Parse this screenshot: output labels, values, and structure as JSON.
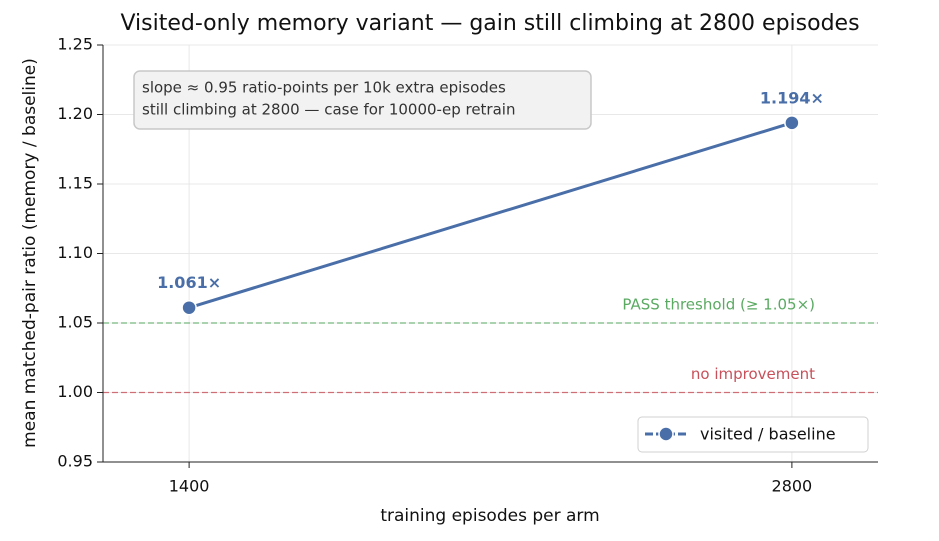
{
  "chart_data": {
    "type": "line",
    "title": "Visited-only memory variant — gain still climbing at 2800 episodes",
    "xlabel": "training episodes per arm",
    "ylabel": "mean matched-pair ratio  (memory / baseline)",
    "x": [
      1400,
      2800
    ],
    "series": [
      {
        "name": "visited / baseline",
        "color": "#4a6fa8",
        "values": [
          1.061,
          1.194
        ],
        "value_labels": [
          "1.061×",
          "1.194×"
        ]
      }
    ],
    "xlim": [
      1200,
      3000
    ],
    "xticks": [
      1400,
      2800
    ],
    "ylim": [
      0.95,
      1.25
    ],
    "yticks": [
      0.95,
      {
        "value": 1,
        "label": "1.00"
      },
      1.05,
      {
        "value": 1.1,
        "label": "1.10"
      },
      1.15,
      {
        "value": 1.2,
        "label": "1.20"
      },
      1.25
    ],
    "grid": true,
    "legend": "lower right",
    "reference_lines": [
      {
        "value": 1.05,
        "label": "PASS threshold (≥ 1.05×)",
        "color": "#5aaa62"
      },
      {
        "value": 1,
        "label": "no improvement",
        "color": "#c8505a"
      }
    ],
    "annotation": [
      "slope ≈ 0.95 ratio-points per 10k extra episodes",
      "still climbing at 2800 — case for 10000-ep retrain"
    ]
  }
}
